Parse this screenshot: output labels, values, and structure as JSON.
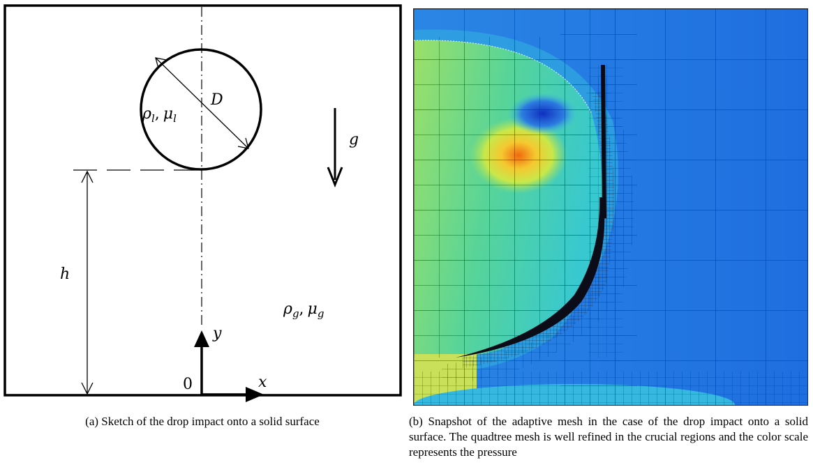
{
  "sketch": {
    "label_D": "D",
    "label_g": "g",
    "label_h": "h",
    "label_rho_l": "ρ",
    "label_rho_l_sub": "l",
    "label_mu_l": "μ",
    "label_mu_l_sub": "l",
    "label_rho_g": "ρ",
    "label_rho_g_sub": "g",
    "label_mu_g": "μ",
    "label_mu_g_sub": "g",
    "label_x": "x",
    "label_y": "y",
    "label_origin": "0",
    "comma": ","
  },
  "captions": {
    "a": "(a)  Sketch of the drop impact onto a solid surface",
    "b": "(b)  Snapshot of the adaptive mesh in the case of the drop impact onto a solid surface. The quadtree mesh is well refined in the crucial regions and the color scale represents the pressure"
  },
  "colors": {
    "background_blue": "#1f6ee0",
    "mid_blue": "#2a8fe8",
    "cyan": "#33c6e0",
    "green": "#8fe06a",
    "yellow": "#f0e040",
    "orange": "#f08a20",
    "dark_blue": "#1838c8"
  }
}
